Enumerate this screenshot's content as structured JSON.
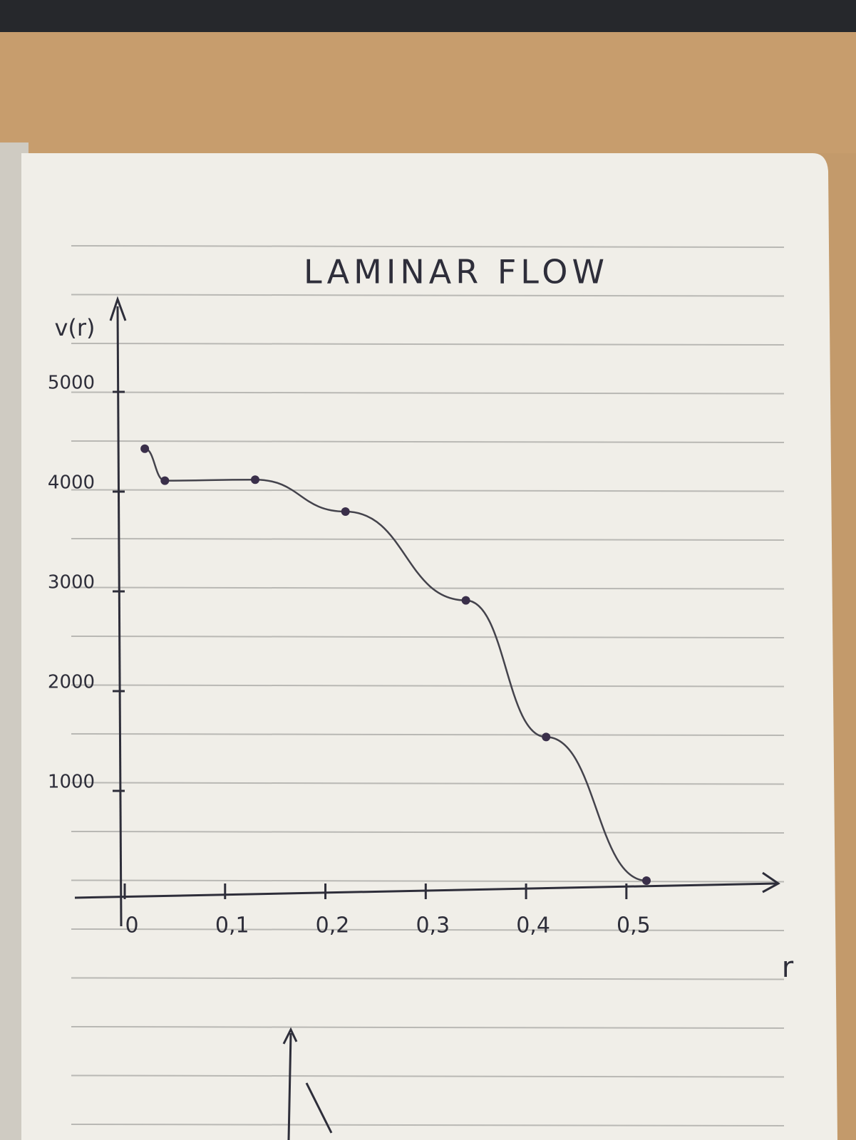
{
  "chart_data": {
    "type": "scatter",
    "title": "LAMINAR FLOW",
    "x_label": "r",
    "y_label": "v(r)",
    "x": [
      0.02,
      0.04,
      0.13,
      0.22,
      0.34,
      0.42,
      0.52
    ],
    "series": [
      {
        "color": "#3a2f4a",
        "values": [
          4430,
          4110,
          4120,
          3800,
          2910,
          1540,
          100
        ]
      }
    ],
    "xlim": [
      0,
      0.65
    ],
    "ylim": [
      0,
      5500
    ],
    "xticks": [
      0,
      {
        "value": 0.1,
        "label": "0,1"
      },
      {
        "value": 0.2,
        "label": "0,2"
      },
      {
        "value": 0.3,
        "label": "0,3"
      },
      {
        "value": 0.4,
        "label": "0,4"
      },
      {
        "value": 0.5,
        "label": "0,5"
      }
    ],
    "yticks": [
      1000,
      2000,
      3000,
      4000,
      5000
    ]
  }
}
